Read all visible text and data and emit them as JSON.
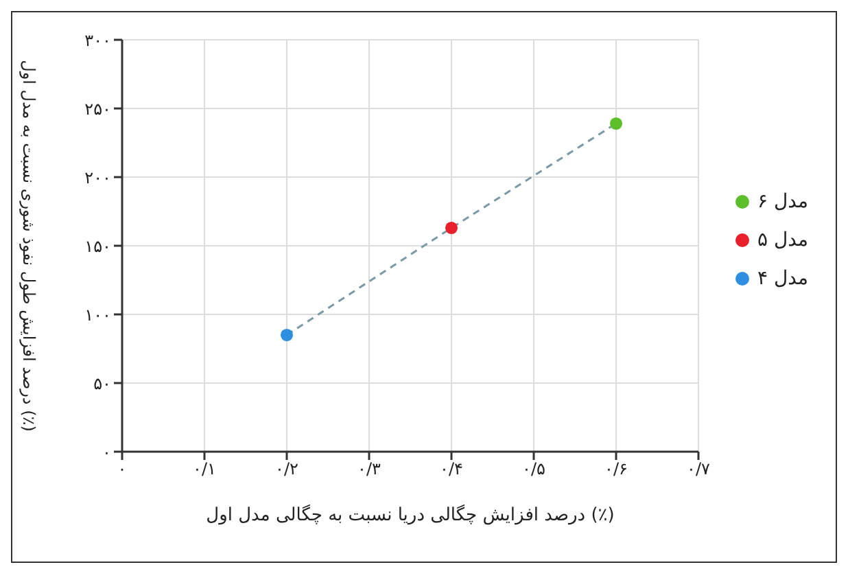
{
  "chart_data": {
    "type": "scatter",
    "xlabel": "درصد افزایش چگالی دریا نسبت به چگالی مدل اول (٪)",
    "ylabel": "درصد افزایش طول نفوذ شوری نسبت به مدل اول (٪)",
    "series": [
      {
        "name": "مدل ۶",
        "color": "#5cbf2a",
        "x": [
          "۰/۶"
        ],
        "values": [
          239
        ]
      },
      {
        "name": "مدل ۵",
        "color": "#e8202a",
        "x": [
          "۰/۴"
        ],
        "values": [
          163
        ]
      },
      {
        "name": "مدل ۴",
        "color": "#2e8fe0",
        "x": [
          "۰/۲"
        ],
        "values": [
          85
        ]
      },
      {
        "type": "line",
        "color": "#7a9aa8",
        "x": [
          "۰/۲",
          "۰/۴",
          "۰/۶"
        ],
        "values": [
          85,
          163,
          239
        ],
        "line_style": "dashed",
        "marker": "none"
      }
    ],
    "categories": [
      "۰",
      "۰/۱",
      "۰/۲",
      "۰/۳",
      "۰/۴",
      "۰/۵",
      "۰/۶",
      "۰/۷"
    ],
    "ylim": [
      0,
      300
    ],
    "yticks": [
      {
        "value": 0,
        "label": "۰"
      },
      {
        "value": 50,
        "label": "۵۰"
      },
      {
        "value": 100,
        "label": "۱۰۰"
      },
      {
        "value": 150,
        "label": "۱۵۰"
      },
      {
        "value": 200,
        "label": "۲۰۰"
      },
      {
        "value": 250,
        "label": "۲۵۰"
      },
      {
        "value": 300,
        "label": "۳۰۰"
      }
    ],
    "grid": true,
    "legend": "right",
    "marker": "circle"
  }
}
